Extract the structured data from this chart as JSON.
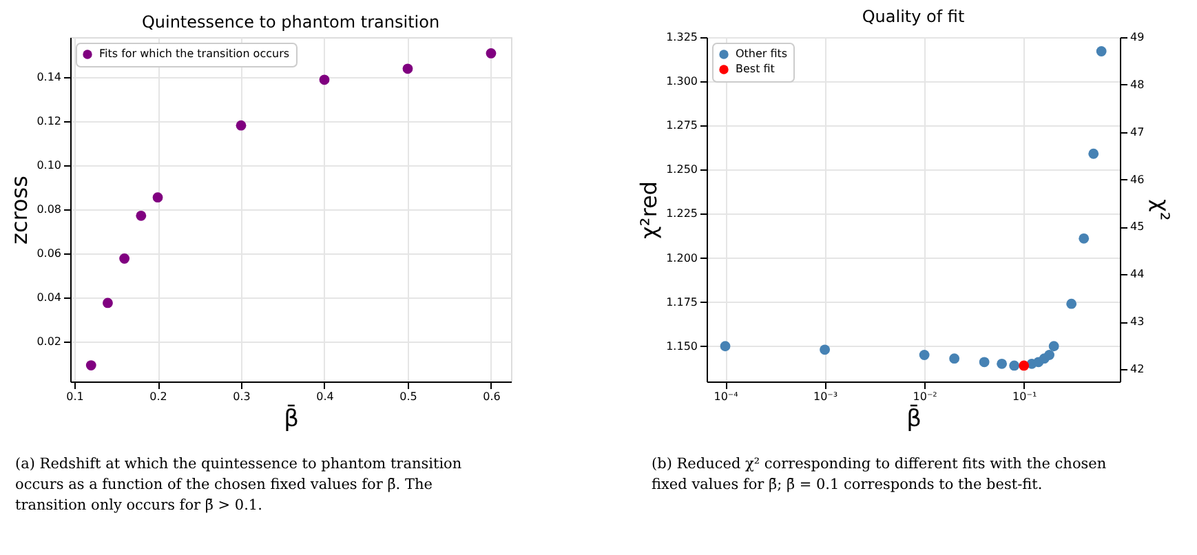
{
  "chart_data": [
    {
      "type": "scatter",
      "title": "Quintessence to phantom transition",
      "xlabel": "β̄",
      "ylabel": "zcross",
      "x": [
        0.12,
        0.14,
        0.16,
        0.18,
        0.2,
        0.3,
        0.4,
        0.5,
        0.6
      ],
      "series": [
        {
          "name": "Fits for which the transition occurs",
          "color": "#800080",
          "values": [
            0.0093,
            0.0376,
            0.0577,
            0.0771,
            0.0854,
            0.118,
            0.1387,
            0.1437,
            0.1507
          ]
        }
      ],
      "xlim": [
        0.095,
        0.624
      ],
      "xticks": [
        0.1,
        0.2,
        0.3,
        0.4,
        0.5,
        0.6
      ],
      "ylim": [
        0.002,
        0.158
      ],
      "yticks": [
        {
          "value": 0.02,
          "label": "0.02"
        },
        {
          "value": 0.04,
          "label": "0.04"
        },
        {
          "value": 0.06,
          "label": "0.06"
        },
        {
          "value": 0.08,
          "label": "0.08"
        },
        {
          "value": 0.1,
          "label": "0.10"
        },
        {
          "value": 0.12,
          "label": "0.12"
        },
        {
          "value": 0.14,
          "label": "0.14"
        }
      ],
      "grid": true,
      "legend": "top left",
      "marker": "circle",
      "annotations": [
        "(a) Redshift at which the quintessence to phantom transition occurs as a function of the chosen fixed values for β̄. The transition only occurs for β̄ > 0.1."
      ]
    },
    {
      "type": "scatter",
      "title": "Quality of fit",
      "xlabel": "β̄",
      "ylabel": "χ²red",
      "y2label": "χ²",
      "series": [
        {
          "name": "Other fits",
          "color": "#4682b4",
          "x": [
            0.0001,
            0.001,
            0.01,
            0.02,
            0.04,
            0.06,
            0.08,
            0.12,
            0.14,
            0.16,
            0.18,
            0.2,
            0.3,
            0.4,
            0.5,
            0.6
          ],
          "values": [
            1.15,
            1.148,
            1.145,
            1.143,
            1.141,
            1.14,
            1.139,
            1.14,
            1.141,
            1.143,
            1.145,
            1.15,
            1.174,
            1.211,
            1.259,
            1.317
          ]
        },
        {
          "name": "Best fit",
          "color": "#ff0000",
          "x": [
            0.1
          ],
          "values": [
            1.139
          ]
        }
      ],
      "log": "x",
      "xlim": [
        6.5e-05,
        0.92
      ],
      "xticks": [
        {
          "value": 0.0001,
          "label": "10⁻⁴"
        },
        {
          "value": 0.001,
          "label": "10⁻³"
        },
        {
          "value": 0.01,
          "label": "10⁻²"
        },
        {
          "value": 0.1,
          "label": "10⁻¹"
        }
      ],
      "ylim": [
        1.13,
        1.325
      ],
      "yticks": [
        {
          "value": 1.15,
          "label": "1.150"
        },
        {
          "value": 1.175,
          "label": "1.175"
        },
        {
          "value": 1.2,
          "label": "1.200"
        },
        {
          "value": 1.225,
          "label": "1.225"
        },
        {
          "value": 1.25,
          "label": "1.250"
        },
        {
          "value": 1.275,
          "label": "1.275"
        },
        {
          "value": 1.3,
          "label": "1.300"
        },
        {
          "value": 1.325,
          "label": "1.325"
        }
      ],
      "y2lim": [
        41.74,
        49
      ],
      "y2ticks": [
        42,
        43,
        44,
        45,
        46,
        47,
        48,
        49
      ],
      "grid": true,
      "legend": "top left",
      "marker": "circle",
      "annotations": [
        "(b) Reduced χ² corresponding to different fits with the chosen fixed values for β̄; β̄ = 0.1 corresponds to the best-fit."
      ]
    }
  ]
}
